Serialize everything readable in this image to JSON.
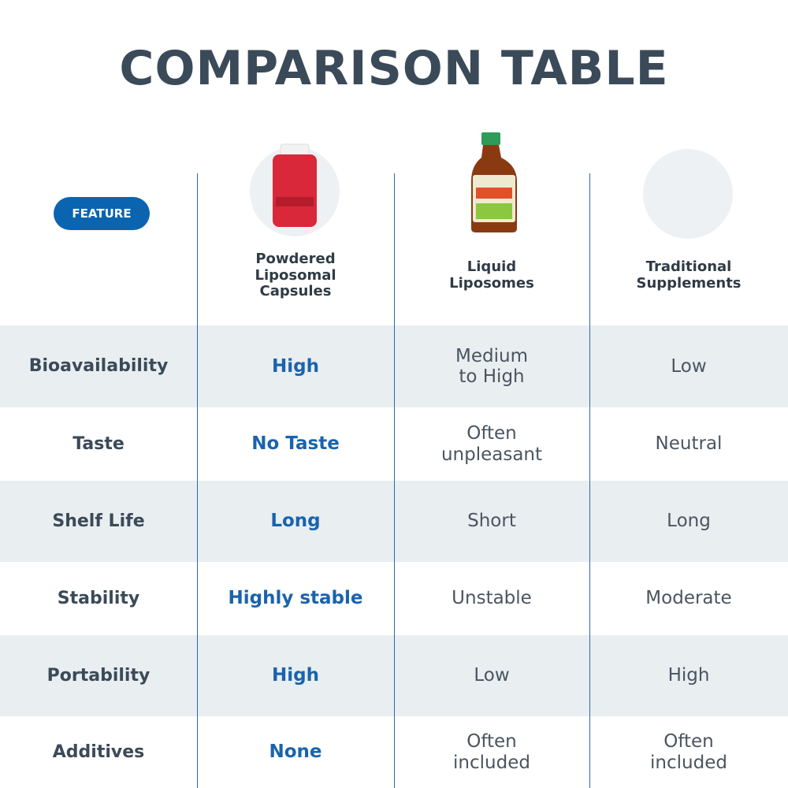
{
  "title": "COMPARISON TABLE",
  "table": {
    "feature_label": "FEATURE",
    "columns": [
      "Powdered\nLiposomal\nCapsules",
      "Liquid\nLiposomes",
      "Traditional\nSupplements"
    ],
    "rows": [
      [
        "Bioavailability",
        "High",
        "Medium\nto High",
        "Low"
      ],
      [
        "Taste",
        "No Taste",
        "Often\nunpleasant",
        "Neutral"
      ],
      [
        "Shelf Life",
        "Long",
        "Short",
        "Long"
      ],
      [
        "Stability",
        "Highly stable",
        "Unstable",
        "Moderate"
      ],
      [
        "Portability",
        "High",
        "Low",
        "High"
      ],
      [
        "Additives",
        "None",
        "Often\nincluded",
        "Often\nincluded"
      ]
    ]
  }
}
